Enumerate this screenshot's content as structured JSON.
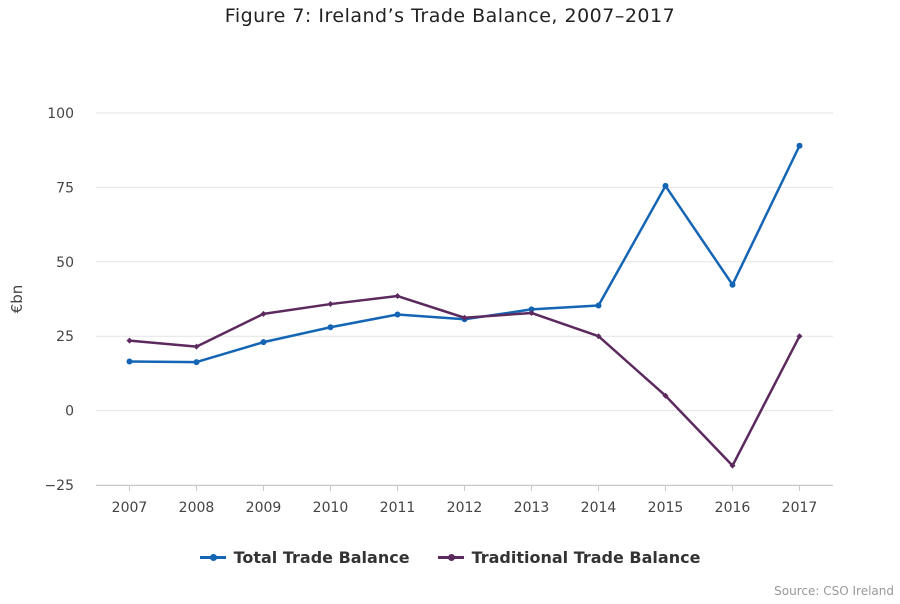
{
  "chart_data": {
    "type": "line",
    "title": "Figure 7: Ireland’s Trade Balance, 2007–2017",
    "xlabel": "",
    "ylabel": "€bn",
    "categories": [
      "2007",
      "2008",
      "2009",
      "2010",
      "2011",
      "2012",
      "2013",
      "2014",
      "2015",
      "2016",
      "2017"
    ],
    "ylim": [
      -25,
      100
    ],
    "yticks": [
      -25,
      0,
      25,
      50,
      75,
      100
    ],
    "grid": true,
    "legend_position": "bottom",
    "series": [
      {
        "name": "Total Trade Balance",
        "color": "#1565b5",
        "marker": "circle",
        "values": [
          16.5,
          16.3,
          23,
          28,
          32.3,
          30.7,
          34,
          35.3,
          75.5,
          42.3,
          89
        ]
      },
      {
        "name": "Traditional Trade Balance",
        "color": "#5c2a5e",
        "marker": "diamond",
        "values": [
          23.5,
          21.5,
          32.5,
          35.8,
          38.5,
          31.2,
          32.8,
          25,
          5,
          -18.5,
          25
        ]
      }
    ],
    "source": "Source: CSO Ireland"
  }
}
